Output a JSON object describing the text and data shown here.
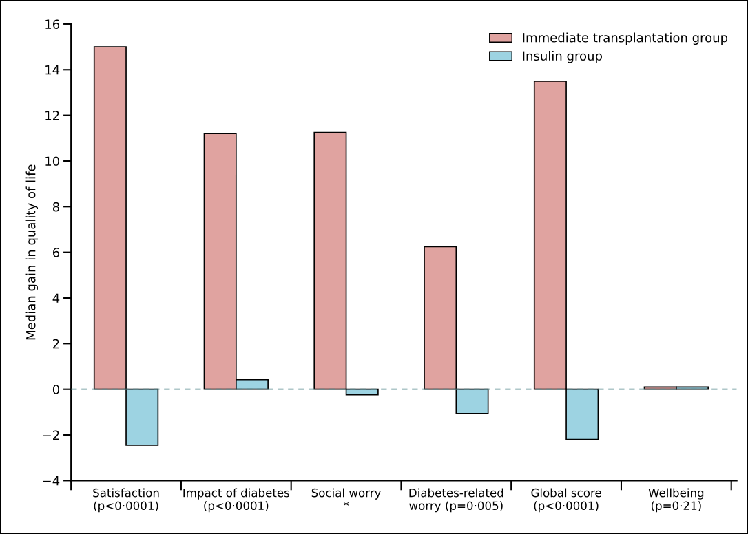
{
  "chart_data": {
    "type": "bar",
    "ylabel": "Median gain in quality of life",
    "categories": [
      "Satisfaction\n(p<0·0001)",
      "Impact of diabetes\n(p<0·0001)",
      "Social worry\n*",
      "Diabetes-related\nworry (p=0·005)",
      "Global score\n(p<0·0001)",
      "Wellbeing\n(p=0·21)"
    ],
    "series": [
      {
        "name": "Immediate transplantation group",
        "color": "#e0a3a0",
        "values": [
          15.0,
          11.2,
          11.25,
          6.25,
          13.5,
          0.1
        ]
      },
      {
        "name": "Insulin group",
        "color": "#9dd3e2",
        "values": [
          -2.45,
          0.42,
          -0.24,
          -1.06,
          -2.2,
          0.1
        ]
      }
    ],
    "ylim": [
      -4,
      16
    ],
    "yticks": [
      {
        "value": -4,
        "label": "−4"
      },
      {
        "value": -2,
        "label": "−2"
      },
      0,
      2,
      4,
      6,
      8,
      10,
      12,
      14,
      16
    ],
    "ref_lines": [
      {
        "axis": "y",
        "value": 0,
        "color": "#5f8f93",
        "line_style": "dashed"
      }
    ],
    "grid": false,
    "legend": "top right"
  }
}
